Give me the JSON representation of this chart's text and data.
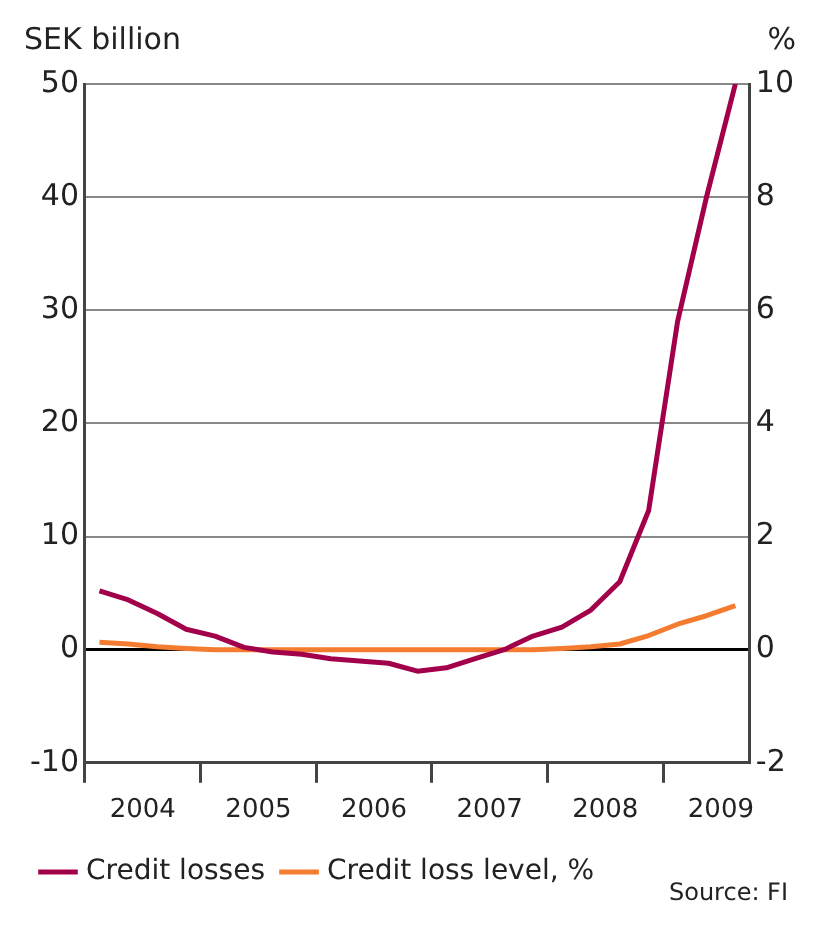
{
  "chart_data": {
    "type": "line",
    "ylabel": "SEK billion",
    "y2label": "%",
    "x": [
      2004.125,
      2004.375,
      2004.625,
      2004.875,
      2005.125,
      2005.375,
      2005.625,
      2005.875,
      2006.125,
      2006.375,
      2006.625,
      2006.875,
      2007.125,
      2007.375,
      2007.625,
      2007.875,
      2008.125,
      2008.375,
      2008.625,
      2008.875,
      2009.125,
      2009.375,
      2009.625
    ],
    "series": [
      {
        "name": "Credit losses",
        "color": "#a3004b",
        "values": [
          5.2,
          4.4,
          3.2,
          1.8,
          1.2,
          0.2,
          -0.2,
          -0.4,
          -0.8,
          -1.0,
          -1.2,
          -1.9,
          -1.6,
          -0.8,
          0,
          1.2,
          2.0,
          3.5,
          6,
          12.3,
          29,
          40,
          50
        ]
      },
      {
        "name": "Credit loss level, %",
        "color": "#f47c30",
        "axis": "y2",
        "values": [
          0.13,
          0.1,
          0.05,
          0.02,
          0,
          0,
          0,
          0,
          0,
          0,
          0,
          0,
          0,
          0,
          0,
          0,
          0.02,
          0.05,
          0.1,
          0.25,
          0.45,
          0.6,
          0.78
        ]
      }
    ],
    "xlim": [
      2004,
      2009.75
    ],
    "xticks": [
      {
        "value": 2004,
        "label": null
      },
      {
        "value": 2004.5,
        "label": "2004"
      },
      {
        "value": 2005,
        "label": null
      },
      {
        "value": 2005.5,
        "label": "2005"
      },
      {
        "value": 2006,
        "label": null
      },
      {
        "value": 2006.5,
        "label": "2006"
      },
      {
        "value": 2007,
        "label": null
      },
      {
        "value": 2007.5,
        "label": "2007"
      },
      {
        "value": 2008,
        "label": null
      },
      {
        "value": 2008.5,
        "label": "2008"
      },
      {
        "value": 2009,
        "label": null
      },
      {
        "value": 2009.5,
        "label": "2009"
      }
    ],
    "ylim": [
      -10,
      50
    ],
    "yticks": [
      -10,
      0,
      10,
      20,
      30,
      40,
      50
    ],
    "y2lim": [
      -2,
      10
    ],
    "y2ticks": [
      -2,
      0,
      2,
      4,
      6,
      8,
      10
    ],
    "grid": "y",
    "legend": "bottom left",
    "marker": "none",
    "line_style": "solid",
    "annotations": [
      "Source: FI"
    ]
  }
}
